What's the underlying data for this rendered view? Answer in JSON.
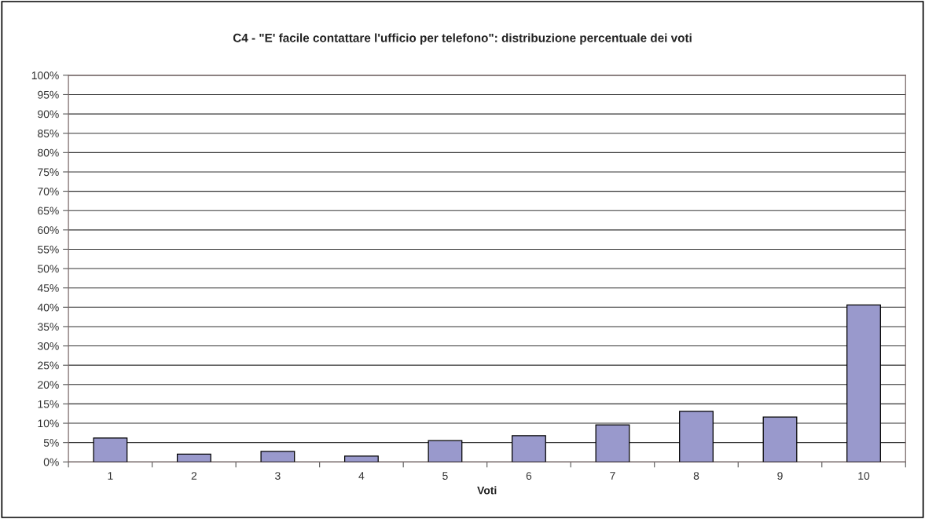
{
  "chart_data": {
    "type": "bar",
    "title": "C4 - \"E' facile contattare l'ufficio per telefono\": distribuzione percentuale dei voti",
    "xlabel": "Voti",
    "categories": [
      "1",
      "2",
      "3",
      "4",
      "5",
      "6",
      "7",
      "8",
      "9",
      "10"
    ],
    "values": [
      6.2,
      2.0,
      2.7,
      1.5,
      5.5,
      6.8,
      9.6,
      13.1,
      11.6,
      40.6
    ],
    "color": "#9999cc",
    "ylim": [
      0,
      100
    ],
    "yticks": [
      {
        "value": 0,
        "label": "0%"
      },
      {
        "value": 5,
        "label": "5%"
      },
      {
        "value": 10,
        "label": "10%"
      },
      {
        "value": 15,
        "label": "15%"
      },
      {
        "value": 20,
        "label": "20%"
      },
      {
        "value": 25,
        "label": "25%"
      },
      {
        "value": 30,
        "label": "30%"
      },
      {
        "value": 35,
        "label": "35%"
      },
      {
        "value": 40,
        "label": "40%"
      },
      {
        "value": 45,
        "label": "45%"
      },
      {
        "value": 50,
        "label": "50%"
      },
      {
        "value": 55,
        "label": "55%"
      },
      {
        "value": 60,
        "label": "60%"
      },
      {
        "value": 65,
        "label": "65%"
      },
      {
        "value": 70,
        "label": "70%"
      },
      {
        "value": 75,
        "label": "75%"
      },
      {
        "value": 80,
        "label": "80%"
      },
      {
        "value": 85,
        "label": "85%"
      },
      {
        "value": 90,
        "label": "90%"
      },
      {
        "value": 95,
        "label": "95%"
      },
      {
        "value": 100,
        "label": "100%"
      }
    ],
    "grid": "y"
  }
}
